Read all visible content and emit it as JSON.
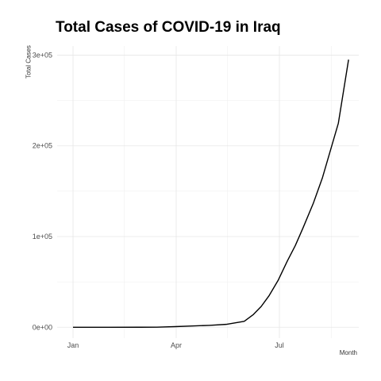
{
  "chart_data": {
    "type": "line",
    "title": "Total Cases of COVID-19 in Iraq",
    "xlabel": "Month",
    "ylabel": "Total Cases",
    "x_ticks": [
      "Jan",
      "Apr",
      "Jul"
    ],
    "y_ticks": [
      "0e+00",
      "1e+05",
      "2e+05",
      "3e+05"
    ],
    "y_tick_values": [
      0,
      100000,
      200000,
      300000
    ],
    "ylim": [
      -12000,
      310000
    ],
    "xlim": [
      "2019-12-18",
      "2020-09-09"
    ],
    "grid": true,
    "line_color": "#000000",
    "series": [
      {
        "x": [
          "2020-01-01",
          "2020-02-01",
          "2020-02-29",
          "2020-03-15",
          "2020-03-31",
          "2020-04-15",
          "2020-04-30",
          "2020-05-15",
          "2020-05-31",
          "2020-06-08",
          "2020-06-15",
          "2020-06-22",
          "2020-06-30",
          "2020-07-08",
          "2020-07-15",
          "2020-07-22",
          "2020-07-31",
          "2020-08-08",
          "2020-08-15",
          "2020-08-22",
          "2020-08-31"
        ],
        "y": [
          0,
          0,
          19,
          110,
          700,
          1400,
          2100,
          3200,
          6500,
          14000,
          23000,
          35000,
          52000,
          73000,
          90000,
          110000,
          137000,
          165000,
          195000,
          225000,
          295000
        ]
      }
    ]
  }
}
